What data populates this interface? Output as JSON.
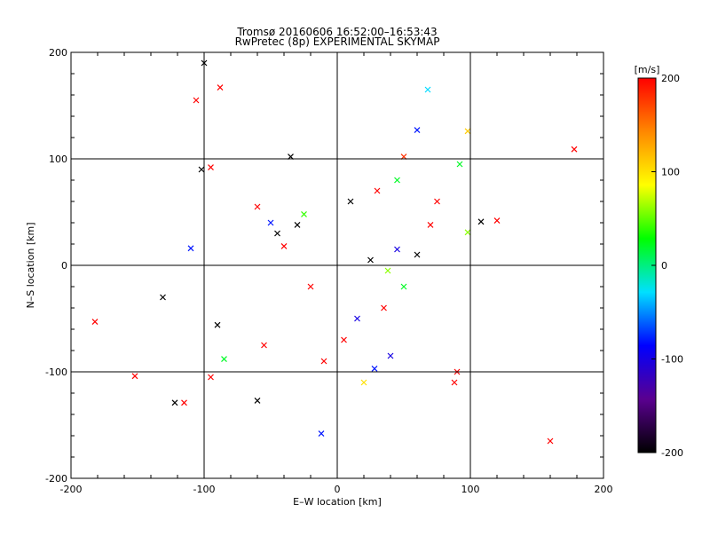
{
  "chart_data": {
    "type": "scatter",
    "title": "Tromsø 20160606 16:52:00–16:53:43",
    "subtitle": "RwPretec (8p) EXPERIMENTAL SKYMAP",
    "xlabel": "E–W location [km]",
    "ylabel": "N–S location [km]",
    "xlim": [
      -200,
      200
    ],
    "ylim": [
      -200,
      200
    ],
    "xticks": [
      -200,
      -100,
      0,
      100,
      200
    ],
    "yticks": [
      -200,
      -100,
      0,
      100,
      200
    ],
    "grid": true,
    "markers": [
      "dot",
      "x"
    ],
    "colorbar": {
      "label": "[m/s]",
      "range": [
        -200,
        200
      ],
      "ticks": [
        200,
        100,
        0,
        -100,
        -200
      ],
      "palette": [
        "#000000",
        "#5a0090",
        "#0000ff",
        "#00e0ff",
        "#00ff00",
        "#ffff00",
        "#ff8800",
        "#ff0000"
      ]
    },
    "points": [
      {
        "x": -100,
        "y": 190,
        "v": -200,
        "m": "x"
      },
      {
        "x": -88,
        "y": 167,
        "v": 200,
        "m": "x"
      },
      {
        "x": -106,
        "y": 155,
        "v": 200,
        "m": "x"
      },
      {
        "x": 68,
        "y": 165,
        "v": -30,
        "m": "x"
      },
      {
        "x": 60,
        "y": 127,
        "v": -80,
        "m": "x"
      },
      {
        "x": 98,
        "y": 126,
        "v": 110,
        "m": "x"
      },
      {
        "x": 178,
        "y": 109,
        "v": 200,
        "m": "x"
      },
      {
        "x": -35,
        "y": 102,
        "v": -200,
        "m": "x"
      },
      {
        "x": 50,
        "y": 102,
        "v": 180,
        "m": "x"
      },
      {
        "x": -102,
        "y": 90,
        "v": -200,
        "m": "x"
      },
      {
        "x": -95,
        "y": 92,
        "v": 200,
        "m": "x"
      },
      {
        "x": 92,
        "y": 95,
        "v": 20,
        "m": "x"
      },
      {
        "x": 120,
        "y": 42,
        "v": 200,
        "m": "x"
      },
      {
        "x": 108,
        "y": 41,
        "v": -200,
        "m": "x"
      },
      {
        "x": 98,
        "y": 31,
        "v": 60,
        "m": "x"
      },
      {
        "x": -110,
        "y": 16,
        "v": -80,
        "m": "x"
      },
      {
        "x": -131,
        "y": -30,
        "v": -200,
        "m": "x"
      },
      {
        "x": -182,
        "y": -53,
        "v": 200,
        "m": "x"
      },
      {
        "x": -90,
        "y": -56,
        "v": -200,
        "m": "x"
      },
      {
        "x": -152,
        "y": -104,
        "v": 200,
        "m": "x"
      },
      {
        "x": -122,
        "y": -129,
        "v": -200,
        "m": "x"
      },
      {
        "x": -115,
        "y": -129,
        "v": 200,
        "m": "x"
      },
      {
        "x": -60,
        "y": -127,
        "v": -200,
        "m": "x"
      },
      {
        "x": -12,
        "y": -158,
        "v": -80,
        "m": "x"
      },
      {
        "x": 160,
        "y": -165,
        "v": 200,
        "m": "x"
      },
      {
        "x": -85,
        "y": -88,
        "v": 20,
        "m": "x"
      },
      {
        "x": -95,
        "y": -105,
        "v": 200,
        "m": "x"
      },
      {
        "x": 20,
        "y": -110,
        "v": 100,
        "m": "x"
      },
      {
        "x": 90,
        "y": -100,
        "v": 200,
        "m": "x"
      },
      {
        "x": 88,
        "y": -110,
        "v": 200,
        "m": "x"
      },
      {
        "x": 28,
        "y": -97,
        "v": -80,
        "m": "x"
      },
      {
        "x": 40,
        "y": -85,
        "v": -100,
        "m": "x"
      },
      {
        "x": -30,
        "y": 38,
        "v": -200,
        "m": "x"
      },
      {
        "x": -25,
        "y": 48,
        "v": 40,
        "m": "x"
      },
      {
        "x": -50,
        "y": 40,
        "v": -80,
        "m": "x"
      },
      {
        "x": -45,
        "y": 30,
        "v": -200,
        "m": "x"
      },
      {
        "x": -60,
        "y": 55,
        "v": 200,
        "m": "x"
      },
      {
        "x": -40,
        "y": 18,
        "v": 200,
        "m": "x"
      },
      {
        "x": 10,
        "y": 60,
        "v": -200,
        "m": "x"
      },
      {
        "x": 30,
        "y": 70,
        "v": 200,
        "m": "x"
      },
      {
        "x": 45,
        "y": 80,
        "v": 20,
        "m": "x"
      },
      {
        "x": 70,
        "y": 38,
        "v": 200,
        "m": "x"
      },
      {
        "x": 60,
        "y": 10,
        "v": -200,
        "m": "x"
      },
      {
        "x": 50,
        "y": -20,
        "v": 20,
        "m": "x"
      },
      {
        "x": 35,
        "y": -40,
        "v": 200,
        "m": "x"
      },
      {
        "x": 15,
        "y": -50,
        "v": -100,
        "m": "x"
      },
      {
        "x": 5,
        "y": -70,
        "v": 200,
        "m": "x"
      },
      {
        "x": -10,
        "y": -90,
        "v": 200,
        "m": "x"
      },
      {
        "x": 45,
        "y": 15,
        "v": -100,
        "m": "x"
      },
      {
        "x": 25,
        "y": 5,
        "v": -200,
        "m": "x"
      },
      {
        "x": 38,
        "y": -5,
        "v": 60,
        "m": "x"
      },
      {
        "x": -20,
        "y": -20,
        "v": 200,
        "m": "x"
      },
      {
        "x": -55,
        "y": -75,
        "v": 200,
        "m": "x"
      },
      {
        "x": 75,
        "y": 60,
        "v": 200,
        "m": "x"
      }
    ]
  }
}
